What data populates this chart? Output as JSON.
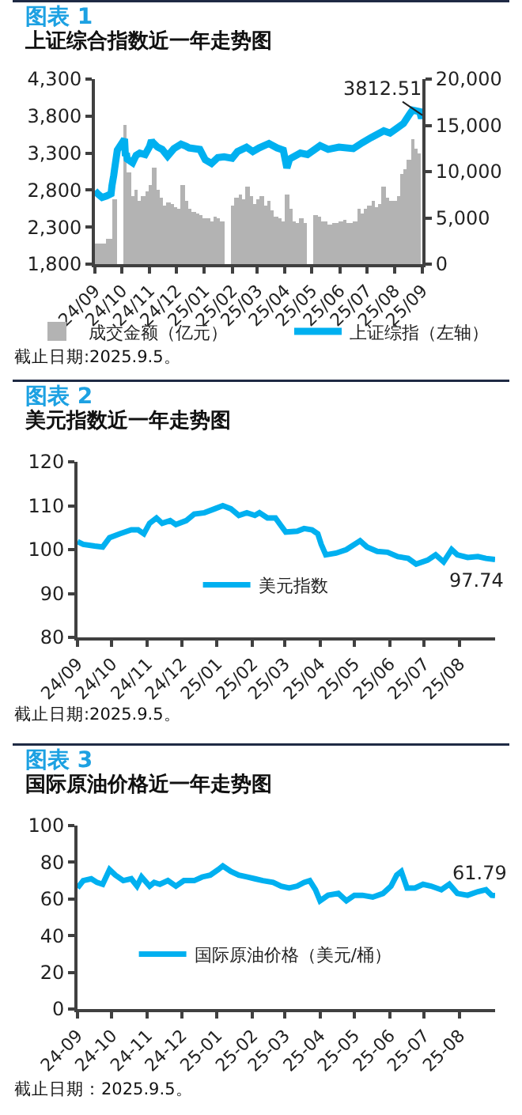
{
  "chart_data": [
    {
      "type": "line",
      "title": "图表 1",
      "subtitle": "上证综合指数近一年走势图",
      "xlim": [
        "2024-09-05",
        "2025-09-05"
      ],
      "xticks": [
        {
          "value": "2024-09-05",
          "label": "24/09"
        },
        {
          "value": "2024-10-05",
          "label": "24/10"
        },
        {
          "value": "2024-11-05",
          "label": "24/11"
        },
        {
          "value": "2024-12-05",
          "label": "24/12"
        },
        {
          "value": "2025-01-05",
          "label": "25/01"
        },
        {
          "value": "2025-02-05",
          "label": "25/02"
        },
        {
          "value": "2025-03-05",
          "label": "25/03"
        },
        {
          "value": "2025-04-05",
          "label": "25/04"
        },
        {
          "value": "2025-05-05",
          "label": "25/05"
        },
        {
          "value": "2025-06-05",
          "label": "25/06"
        },
        {
          "value": "2025-07-05",
          "label": "25/07"
        },
        {
          "value": "2025-08-05",
          "label": "25/08"
        },
        {
          "value": "2025-09-05",
          "label": "25/09"
        }
      ],
      "ylim": [
        1800,
        4300
      ],
      "yticks": [
        {
          "value": 1800,
          "label": "1,800"
        },
        {
          "value": 2300,
          "label": "2,300"
        },
        {
          "value": 2800,
          "label": "2,800"
        },
        {
          "value": 3300,
          "label": "3,300"
        },
        {
          "value": 3800,
          "label": "3,800"
        },
        {
          "value": 4300,
          "label": "4,300"
        }
      ],
      "y2lim": [
        0,
        20000
      ],
      "y2ticks": [
        0,
        {
          "value": 5000,
          "label": "5,000"
        },
        {
          "value": 10000,
          "label": "10,000"
        },
        {
          "value": 15000,
          "label": "15,000"
        },
        {
          "value": 20000,
          "label": "20,000"
        }
      ],
      "legend": "bottom",
      "annotations": [
        {
          "text": "3812.51",
          "x": "2025-09-05",
          "y": 3812.51
        },
        "截止日期:2025.9.5。"
      ],
      "series": [
        {
          "name": "成交金额（亿元）",
          "type": "bar",
          "axis": "y2",
          "color": "#b3b3b3",
          "x": [
            "2024-09-07",
            "2024-09-11",
            "2024-09-15",
            "2024-09-19",
            "2024-09-23",
            "2024-09-27",
            "2024-10-09",
            "2024-10-13",
            "2024-10-17",
            "2024-10-21",
            "2024-10-25",
            "2024-10-29",
            "2024-11-02",
            "2024-11-06",
            "2024-11-10",
            "2024-11-14",
            "2024-11-18",
            "2024-11-22",
            "2024-11-26",
            "2024-11-30",
            "2024-12-04",
            "2024-12-08",
            "2024-12-12",
            "2024-12-16",
            "2024-12-20",
            "2024-12-24",
            "2024-12-28",
            "2025-01-01",
            "2025-01-05",
            "2025-01-09",
            "2025-01-13",
            "2025-01-17",
            "2025-01-21",
            "2025-01-25",
            "2025-02-06",
            "2025-02-10",
            "2025-02-14",
            "2025-02-18",
            "2025-02-22",
            "2025-02-26",
            "2025-03-02",
            "2025-03-06",
            "2025-03-10",
            "2025-03-14",
            "2025-03-18",
            "2025-03-22",
            "2025-03-26",
            "2025-03-30",
            "2025-04-03",
            "2025-04-07",
            "2025-04-11",
            "2025-04-15",
            "2025-04-19",
            "2025-04-23",
            "2025-04-27",
            "2025-05-09",
            "2025-05-13",
            "2025-05-17",
            "2025-05-21",
            "2025-05-25",
            "2025-05-29",
            "2025-06-02",
            "2025-06-06",
            "2025-06-10",
            "2025-06-14",
            "2025-06-18",
            "2025-06-22",
            "2025-06-26",
            "2025-06-30",
            "2025-07-04",
            "2025-07-08",
            "2025-07-12",
            "2025-07-16",
            "2025-07-20",
            "2025-07-24",
            "2025-07-28",
            "2025-08-01",
            "2025-08-05",
            "2025-08-09",
            "2025-08-13",
            "2025-08-17",
            "2025-08-21",
            "2025-08-25",
            "2025-08-29",
            "2025-09-02"
          ],
          "values": [
            2300,
            2200,
            2300,
            2700,
            2800,
            7000,
            15000,
            10000,
            7400,
            8000,
            6900,
            7300,
            7900,
            8500,
            10500,
            8000,
            7200,
            6400,
            6600,
            6500,
            6100,
            6000,
            8500,
            6800,
            5900,
            5700,
            5500,
            5300,
            5000,
            4900,
            4700,
            5100,
            5000,
            4700,
            6400,
            7200,
            7500,
            7000,
            8400,
            7400,
            6500,
            7000,
            7300,
            6300,
            6800,
            5800,
            5200,
            4900,
            4600,
            7500,
            6000,
            4600,
            4400,
            4900,
            4400,
            5300,
            5100,
            4600,
            4600,
            4300,
            4500,
            4400,
            4600,
            4800,
            4500,
            4500,
            4700,
            5900,
            5400,
            5900,
            6400,
            6900,
            6100,
            6500,
            8300,
            7200,
            6800,
            6800,
            7400,
            9700,
            10300,
            11200,
            13500,
            12400,
            12000
          ]
        },
        {
          "name": "上证综指（左轴）",
          "color": "#00b0f0",
          "x": [
            "2024-09-05",
            "2024-09-09",
            "2024-09-13",
            "2024-09-18",
            "2024-09-23",
            "2024-09-24",
            "2024-09-26",
            "2024-09-27",
            "2024-09-30",
            "2024-10-08",
            "2024-10-09",
            "2024-10-10",
            "2024-10-11",
            "2024-10-17",
            "2024-10-21",
            "2024-10-25",
            "2024-10-31",
            "2024-11-05",
            "2024-11-07",
            "2024-11-08",
            "2024-11-14",
            "2024-11-19",
            "2024-11-25",
            "2024-12-02",
            "2024-12-10",
            "2024-12-16",
            "2024-12-19",
            "2024-12-31",
            "2025-01-06",
            "2025-01-13",
            "2025-01-20",
            "2025-01-27",
            "2025-02-05",
            "2025-02-11",
            "2025-02-21",
            "2025-02-28",
            "2025-03-07",
            "2025-03-18",
            "2025-03-27",
            "2025-04-03",
            "2025-04-07",
            "2025-04-10",
            "2025-04-22",
            "2025-04-30",
            "2025-05-14",
            "2025-05-23",
            "2025-06-04",
            "2025-06-20",
            "2025-06-30",
            "2025-07-10",
            "2025-07-24",
            "2025-07-31",
            "2025-08-08",
            "2025-08-15",
            "2025-08-22",
            "2025-08-25",
            "2025-09-02",
            "2025-09-04",
            "2025-09-05"
          ],
          "values": [
            2790,
            2740,
            2700,
            2720,
            2750,
            2860,
            3000,
            3090,
            3340,
            3490,
            3260,
            3300,
            3220,
            3170,
            3270,
            3300,
            3280,
            3390,
            3470,
            3450,
            3380,
            3350,
            3260,
            3360,
            3420,
            3390,
            3370,
            3350,
            3210,
            3160,
            3240,
            3250,
            3230,
            3320,
            3380,
            3320,
            3370,
            3430,
            3370,
            3340,
            3100,
            3220,
            3300,
            3280,
            3400,
            3350,
            3380,
            3360,
            3440,
            3510,
            3600,
            3570,
            3640,
            3700,
            3830,
            3880,
            3860,
            3770,
            3812.51
          ]
        }
      ]
    },
    {
      "type": "line",
      "title": "图表 2",
      "subtitle": "美元指数近一年走势图",
      "xlim": [
        "2024-09-05",
        "2025-09-05"
      ],
      "xticks": [
        {
          "value": "2024-09-05",
          "label": "24/09"
        },
        {
          "value": "2024-10-05",
          "label": "24/10"
        },
        {
          "value": "2024-11-05",
          "label": "24/11"
        },
        {
          "value": "2024-12-05",
          "label": "24/12"
        },
        {
          "value": "2025-01-05",
          "label": "25/01"
        },
        {
          "value": "2025-02-05",
          "label": "25/02"
        },
        {
          "value": "2025-03-05",
          "label": "25/03"
        },
        {
          "value": "2025-04-05",
          "label": "25/04"
        },
        {
          "value": "2025-05-05",
          "label": "25/05"
        },
        {
          "value": "2025-06-05",
          "label": "25/06"
        },
        {
          "value": "2025-07-05",
          "label": "25/07"
        },
        {
          "value": "2025-08-05",
          "label": "25/08"
        }
      ],
      "ylim": [
        80,
        120
      ],
      "yticks": [
        80,
        90,
        100,
        110,
        120
      ],
      "legend": "center",
      "annotations": [
        {
          "text": "97.74",
          "x": "2025-09-05",
          "y": 97.74
        },
        "截止日期:2025.9.5。"
      ],
      "series": [
        {
          "name": "美元指数",
          "color": "#00b0f0",
          "x": [
            "2024-09-05",
            "2024-09-10",
            "2024-09-20",
            "2024-09-27",
            "2024-10-03",
            "2024-10-12",
            "2024-10-22",
            "2024-10-28",
            "2024-11-02",
            "2024-11-07",
            "2024-11-13",
            "2024-11-18",
            "2024-11-25",
            "2024-11-30",
            "2024-12-09",
            "2024-12-16",
            "2024-12-25",
            "2025-01-03",
            "2025-01-10",
            "2025-01-17",
            "2025-01-24",
            "2025-01-31",
            "2025-02-07",
            "2025-02-11",
            "2025-02-18",
            "2025-02-25",
            "2025-03-02",
            "2025-03-06",
            "2025-03-16",
            "2025-03-22",
            "2025-03-29",
            "2025-04-03",
            "2025-04-06",
            "2025-04-10",
            "2025-04-19",
            "2025-04-28",
            "2025-05-10",
            "2025-05-16",
            "2025-05-25",
            "2025-06-03",
            "2025-06-12",
            "2025-06-21",
            "2025-06-28",
            "2025-07-08",
            "2025-07-15",
            "2025-07-22",
            "2025-07-29",
            "2025-08-03",
            "2025-08-12",
            "2025-08-21",
            "2025-08-28",
            "2025-09-05"
          ],
          "values": [
            101.8,
            101.2,
            100.8,
            100.6,
            102.7,
            103.6,
            104.5,
            104.5,
            103.6,
            106.0,
            107.2,
            106.0,
            106.6,
            105.7,
            106.6,
            108.1,
            108.4,
            109.3,
            110.0,
            109.3,
            107.8,
            108.4,
            107.8,
            108.4,
            107.2,
            107.2,
            105.4,
            104.0,
            104.2,
            104.8,
            104.5,
            103.6,
            101.2,
            98.8,
            99.2,
            100.0,
            102.0,
            100.6,
            99.6,
            99.4,
            98.4,
            98.0,
            96.7,
            97.6,
            98.8,
            97.2,
            100.0,
            98.8,
            98.2,
            98.4,
            98.0,
            97.74
          ]
        }
      ]
    },
    {
      "type": "line",
      "title": "图表 3",
      "subtitle": "国际原油价格近一年走势图",
      "xlim": [
        "2024-09-05",
        "2025-09-05"
      ],
      "xticks": [
        {
          "value": "2024-09-05",
          "label": "24-09"
        },
        {
          "value": "2024-10-05",
          "label": "24-10"
        },
        {
          "value": "2024-11-05",
          "label": "24-11"
        },
        {
          "value": "2024-12-05",
          "label": "24-12"
        },
        {
          "value": "2025-01-05",
          "label": "25-01"
        },
        {
          "value": "2025-02-05",
          "label": "25-02"
        },
        {
          "value": "2025-03-05",
          "label": "25-03"
        },
        {
          "value": "2025-04-05",
          "label": "25-04"
        },
        {
          "value": "2025-05-05",
          "label": "25-05"
        },
        {
          "value": "2025-06-05",
          "label": "25-06"
        },
        {
          "value": "2025-07-05",
          "label": "25-07"
        },
        {
          "value": "2025-08-05",
          "label": "25-08"
        }
      ],
      "ylim": [
        0,
        100
      ],
      "yticks": [
        0,
        20,
        40,
        60,
        80,
        100
      ],
      "legend": "center",
      "annotations": [
        {
          "text": "61.79",
          "x": "2025-09-05",
          "y": 61.79
        },
        "截止日期：2025.9.5。"
      ],
      "series": [
        {
          "name": "国际原油价格（美元/桶）",
          "color": "#00b0f0",
          "x": [
            "2024-09-05",
            "2024-09-10",
            "2024-09-17",
            "2024-09-22",
            "2024-09-27",
            "2024-10-03",
            "2024-10-08",
            "2024-10-15",
            "2024-10-22",
            "2024-10-27",
            "2024-10-31",
            "2024-11-07",
            "2024-11-11",
            "2024-11-16",
            "2024-11-23",
            "2024-11-30",
            "2024-12-07",
            "2024-12-16",
            "2024-12-23",
            "2024-12-30",
            "2025-01-06",
            "2025-01-10",
            "2025-01-17",
            "2025-01-24",
            "2025-01-31",
            "2025-02-07",
            "2025-02-14",
            "2025-02-23",
            "2025-03-02",
            "2025-03-09",
            "2025-03-16",
            "2025-03-22",
            "2025-03-27",
            "2025-04-01",
            "2025-04-05",
            "2025-04-12",
            "2025-04-21",
            "2025-04-28",
            "2025-05-05",
            "2025-05-12",
            "2025-05-21",
            "2025-05-30",
            "2025-06-06",
            "2025-06-11",
            "2025-06-15",
            "2025-06-20",
            "2025-06-27",
            "2025-07-04",
            "2025-07-11",
            "2025-07-20",
            "2025-07-27",
            "2025-08-03",
            "2025-08-12",
            "2025-08-21",
            "2025-08-28",
            "2025-09-02",
            "2025-09-05"
          ],
          "values": [
            66,
            70,
            71,
            69,
            68,
            76,
            73,
            70,
            71,
            67,
            72,
            67,
            69,
            68,
            70,
            67,
            70,
            70,
            72,
            73,
            76,
            78,
            75,
            73,
            72,
            71,
            70,
            69,
            67,
            66,
            67,
            69,
            70,
            65,
            59,
            62,
            63,
            59,
            62,
            62,
            61,
            63,
            67,
            73,
            75,
            66,
            66,
            68,
            67,
            65,
            68,
            63,
            62,
            64,
            65,
            62,
            61.79
          ]
        }
      ]
    }
  ]
}
